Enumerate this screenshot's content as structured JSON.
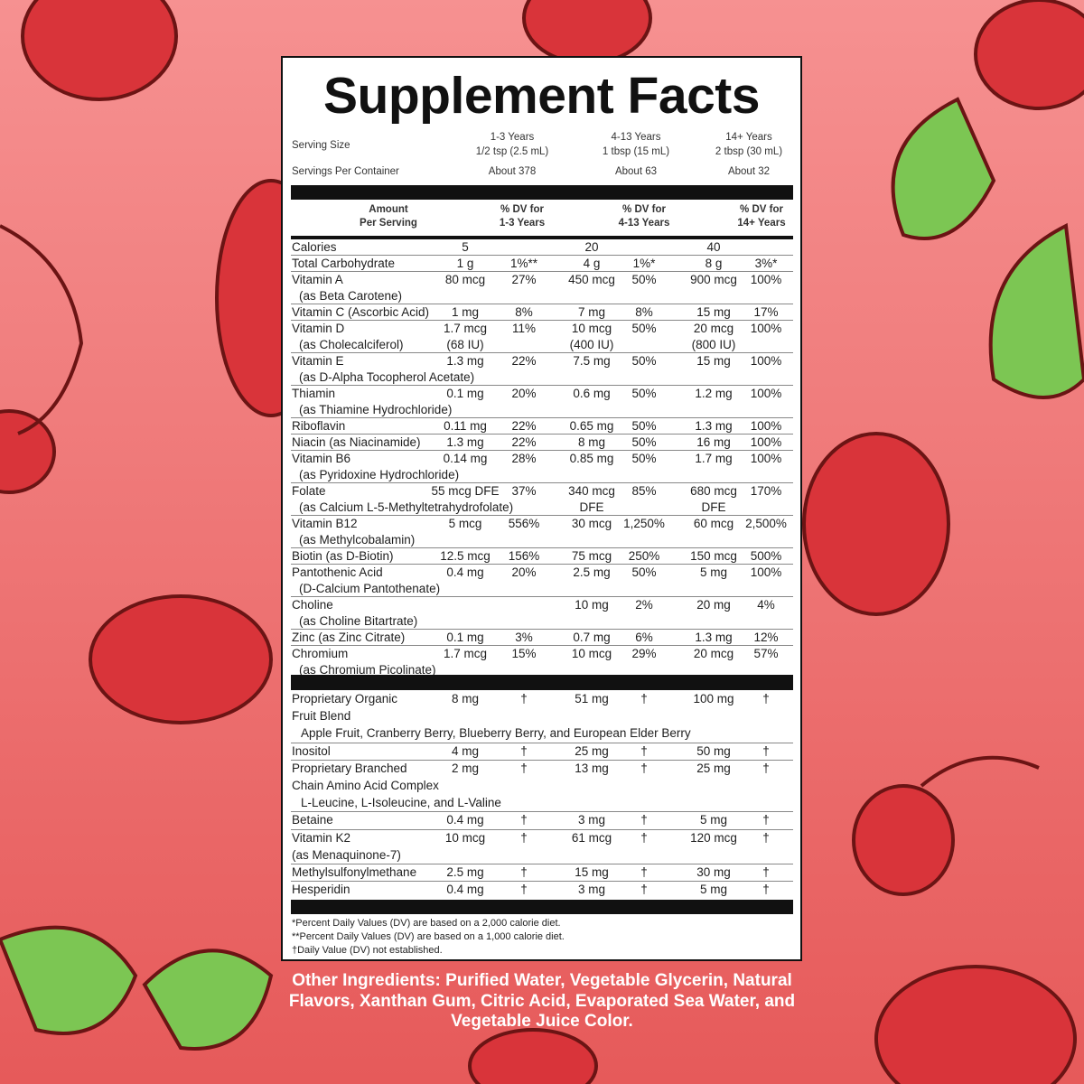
{
  "title": "Supplement Facts",
  "serving": {
    "size_label": "Serving Size",
    "per_container_label": "Servings Per Container",
    "groups": [
      {
        "age": "1-3 Years",
        "size": "1/2 tsp (2.5 mL)",
        "servings": "About 378"
      },
      {
        "age": "4-13 Years",
        "size": "1 tbsp (15 mL)",
        "servings": "About 63"
      },
      {
        "age": "14+ Years",
        "size": "2 tbsp (30 mL)",
        "servings": "About 32"
      }
    ]
  },
  "header": {
    "amount": [
      "Amount",
      "Per Serving"
    ],
    "dv": [
      [
        "% DV for",
        "1-3 Years"
      ],
      [
        "% DV for",
        "4-13 Years"
      ],
      [
        "% DV for",
        "14+ Years"
      ]
    ]
  },
  "sections": [
    {
      "rows": [
        {
          "name": [
            "Calories"
          ],
          "cells": [
            "5",
            null,
            "20",
            null,
            "40",
            null
          ]
        },
        {
          "name": [
            "Total Carbohydrate"
          ],
          "cells": [
            "1 g",
            "1%**",
            "4 g",
            "1%*",
            "8 g",
            "3%*"
          ]
        },
        {
          "name": [
            "Vitamin A",
            "(as Beta Carotene)"
          ],
          "cells": [
            "80 mcg",
            "27%",
            "450 mcg",
            "50%",
            "900 mcg",
            "100%"
          ]
        },
        {
          "name": [
            "Vitamin C (Ascorbic Acid)"
          ],
          "cells": [
            "1 mg",
            "8%",
            "7 mg",
            "8%",
            "15 mg",
            "17%"
          ]
        },
        {
          "name": [
            "Vitamin D",
            "(as Cholecalciferol)"
          ],
          "cells": [
            [
              "1.7 mcg",
              "(68 IU)"
            ],
            "11%",
            [
              "10 mcg",
              "(400 IU)"
            ],
            "50%",
            [
              "20 mcg",
              "(800 IU)"
            ],
            "100%"
          ]
        },
        {
          "name": [
            "Vitamin E",
            "(as D-Alpha Tocopherol Acetate)"
          ],
          "cells": [
            "1.3 mg",
            "22%",
            "7.5 mg",
            "50%",
            "15 mg",
            "100%"
          ]
        },
        {
          "name": [
            "Thiamin",
            "(as Thiamine Hydrochloride)"
          ],
          "cells": [
            "0.1 mg",
            "20%",
            "0.6 mg",
            "50%",
            "1.2 mg",
            "100%"
          ]
        },
        {
          "name": [
            "Riboflavin"
          ],
          "cells": [
            "0.11 mg",
            "22%",
            "0.65 mg",
            "50%",
            "1.3 mg",
            "100%"
          ]
        },
        {
          "name": [
            "Niacin (as Niacinamide)"
          ],
          "cells": [
            "1.3 mg",
            "22%",
            "8 mg",
            "50%",
            "16 mg",
            "100%"
          ]
        },
        {
          "name": [
            "Vitamin B6",
            "(as Pyridoxine Hydrochloride)"
          ],
          "cells": [
            "0.14 mg",
            "28%",
            "0.85 mg",
            "50%",
            "1.7 mg",
            "100%"
          ]
        },
        {
          "name": [
            "Folate",
            "(as Calcium L-5-Methyltetrahydrofolate)"
          ],
          "cells": [
            "55 mcg DFE",
            "37%",
            [
              "340 mcg",
              "DFE"
            ],
            "85%",
            [
              "680 mcg",
              "DFE"
            ],
            "170%"
          ]
        },
        {
          "name": [
            "Vitamin B12",
            "(as Methylcobalamin)"
          ],
          "cells": [
            "5 mcg",
            "556%",
            "30 mcg",
            "1,250%",
            "60 mcg",
            "2,500%"
          ]
        },
        {
          "name": [
            "Biotin (as D-Biotin)"
          ],
          "cells": [
            "12.5 mcg",
            "156%",
            "75 mcg",
            "250%",
            "150 mcg",
            "500%"
          ]
        },
        {
          "name": [
            "Pantothenic Acid",
            "(D-Calcium Pantothenate)"
          ],
          "cells": [
            "0.4 mg",
            "20%",
            "2.5 mg",
            "50%",
            "5 mg",
            "100%"
          ]
        },
        {
          "name": [
            "Choline",
            "(as Choline Bitartrate)"
          ],
          "cells": [
            null,
            null,
            "10 mg",
            "2%",
            "20 mg",
            "4%"
          ]
        },
        {
          "name": [
            "Zinc (as Zinc Citrate)"
          ],
          "cells": [
            "0.1 mg",
            "3%",
            "0.7 mg",
            "6%",
            "1.3 mg",
            "12%"
          ]
        },
        {
          "name": [
            "Chromium",
            "(as Chromium Picolinate)"
          ],
          "cells": [
            "1.7 mcg",
            "15%",
            "10 mcg",
            "29%",
            "20 mcg",
            "57%"
          ]
        }
      ]
    },
    {
      "rows": [
        {
          "name": [
            "Proprietary Organic",
            "Fruit Blend"
          ],
          "sub": "Apple Fruit, Cranberry Berry, Blueberry Berry, and European Elder Berry",
          "cells": [
            "8 mg",
            "†",
            "51 mg",
            "†",
            "100 mg",
            "†"
          ]
        },
        {
          "name": [
            "Inositol"
          ],
          "cells": [
            "4 mg",
            "†",
            "25 mg",
            "†",
            "50 mg",
            "†"
          ]
        },
        {
          "name": [
            "Proprietary Branched",
            "Chain Amino Acid Complex"
          ],
          "sub": "L-Leucine, L-Isoleucine, and L-Valine",
          "cells": [
            "2 mg",
            "†",
            "13 mg",
            "†",
            "25 mg",
            "†"
          ]
        },
        {
          "name": [
            "Betaine"
          ],
          "cells": [
            "0.4 mg",
            "†",
            "3 mg",
            "†",
            "5 mg",
            "†"
          ]
        },
        {
          "name": [
            "Vitamin K2",
            "(as Menaquinone-7)"
          ],
          "cells": [
            "10 mcg",
            "†",
            "61 mcg",
            "†",
            "120 mcg",
            "†"
          ]
        },
        {
          "name": [
            "Methylsulfonylmethane"
          ],
          "cells": [
            "2.5 mg",
            "†",
            "15 mg",
            "†",
            "30 mg",
            "†"
          ]
        },
        {
          "name": [
            "Hesperidin"
          ],
          "cells": [
            "0.4 mg",
            "†",
            "3 mg",
            "†",
            "5 mg",
            "†"
          ]
        }
      ]
    }
  ],
  "footnotes": [
    "*Percent Daily Values (DV) are based on a 2,000 calorie diet.",
    "**Percent Daily Values (DV) are based on a 1,000 calorie diet.",
    "†Daily Value (DV) not established."
  ],
  "other_ingredients": "Other Ingredients: Purified Water, Vegetable Glycerin, Natural Flavors, Xanthan Gum, Citric Acid, Evaporated Sea Water, and Vegetable Juice Color."
}
